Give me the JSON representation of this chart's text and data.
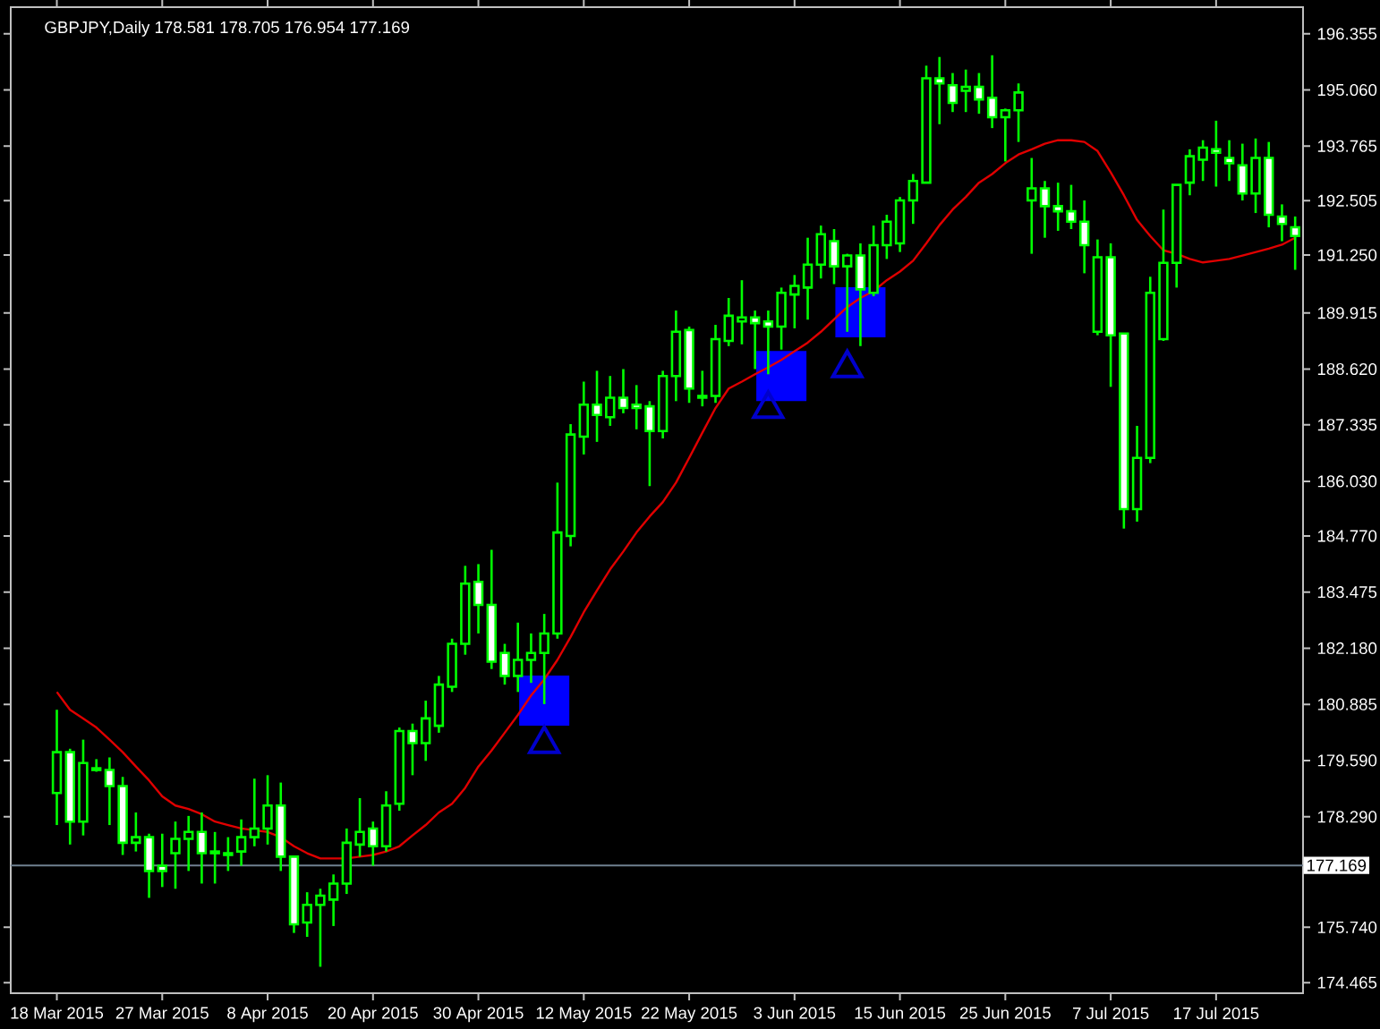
{
  "chart_data": {
    "type": "candlestick",
    "title": "GBPJPY,Daily 178.581 178.705 176.954 177.169",
    "color": "#00ff00",
    "categories": [
      "18 Mar 2015",
      null,
      null,
      null,
      null,
      null,
      null,
      null,
      "27 Mar 2015",
      null,
      null,
      null,
      null,
      null,
      null,
      null,
      "8 Apr 2015",
      null,
      null,
      null,
      null,
      null,
      null,
      null,
      "20 Apr 2015",
      null,
      null,
      null,
      null,
      null,
      null,
      null,
      "30 Apr 2015",
      null,
      null,
      null,
      null,
      null,
      null,
      null,
      "12 May 2015",
      null,
      null,
      null,
      null,
      null,
      null,
      null,
      "22 May 2015",
      null,
      null,
      null,
      null,
      null,
      null,
      null,
      "3 Jun 2015",
      null,
      null,
      null,
      null,
      null,
      null,
      null,
      "15 Jun 2015",
      null,
      null,
      null,
      null,
      null,
      null,
      null,
      "25 Jun 2015",
      null,
      null,
      null,
      null,
      null,
      null,
      null,
      "7 Jul 2015",
      null,
      null,
      null,
      null,
      null,
      null,
      null,
      "17 Jul 2015",
      null,
      null,
      null,
      null,
      null,
      null
    ],
    "ohlc": [
      [
        178.84,
        180.76,
        178.1,
        179.78
      ],
      [
        179.78,
        179.86,
        177.65,
        178.18
      ],
      [
        178.18,
        180.07,
        177.86,
        179.53
      ],
      [
        179.37,
        179.62,
        179.33,
        179.41
      ],
      [
        179.37,
        179.66,
        178.1,
        179.0
      ],
      [
        179.0,
        179.21,
        177.41,
        177.69
      ],
      [
        177.69,
        178.39,
        177.49,
        177.82
      ],
      [
        177.82,
        177.9,
        176.42,
        177.04
      ],
      [
        177.16,
        177.9,
        176.67,
        177.04
      ],
      [
        177.45,
        178.18,
        176.63,
        177.78
      ],
      [
        177.78,
        178.31,
        177.04,
        177.94
      ],
      [
        177.94,
        178.39,
        176.75,
        177.45
      ],
      [
        177.45,
        177.94,
        176.75,
        177.49
      ],
      [
        177.41,
        177.82,
        177.04,
        177.45
      ],
      [
        177.49,
        178.23,
        177.16,
        177.82
      ],
      [
        177.82,
        179.17,
        177.61,
        178.02
      ],
      [
        178.02,
        179.25,
        177.65,
        178.55
      ],
      [
        178.55,
        179.08,
        177.04,
        177.37
      ],
      [
        177.37,
        177.37,
        175.61,
        175.81
      ],
      [
        175.85,
        176.55,
        175.52,
        176.26
      ],
      [
        176.26,
        176.63,
        174.83,
        176.47
      ],
      [
        176.38,
        176.96,
        175.77,
        176.75
      ],
      [
        176.75,
        178.02,
        176.51,
        177.69
      ],
      [
        177.65,
        178.72,
        177.37,
        177.94
      ],
      [
        178.02,
        178.18,
        177.16,
        177.61
      ],
      [
        177.61,
        178.88,
        177.49,
        178.55
      ],
      [
        178.59,
        180.35,
        178.43,
        180.27
      ],
      [
        180.27,
        180.44,
        179.25,
        179.99
      ],
      [
        179.99,
        180.97,
        179.58,
        180.56
      ],
      [
        180.39,
        181.54,
        180.23,
        181.34
      ],
      [
        181.29,
        182.4,
        181.17,
        182.28
      ],
      [
        182.28,
        184.08,
        182.03,
        183.67
      ],
      [
        183.71,
        184.12,
        182.52,
        183.18
      ],
      [
        183.18,
        184.45,
        181.7,
        181.87
      ],
      [
        182.07,
        182.28,
        181.34,
        181.54
      ],
      [
        181.54,
        182.77,
        181.17,
        181.91
      ],
      [
        181.91,
        182.52,
        181.38,
        182.07
      ],
      [
        182.07,
        182.97,
        180.89,
        182.52
      ],
      [
        182.52,
        186.0,
        182.4,
        184.85
      ],
      [
        184.77,
        187.35,
        184.53,
        187.11
      ],
      [
        187.06,
        188.33,
        186.65,
        187.8
      ],
      [
        187.8,
        188.58,
        186.94,
        187.56
      ],
      [
        187.51,
        188.46,
        187.31,
        187.96
      ],
      [
        187.96,
        188.62,
        187.6,
        187.72
      ],
      [
        187.8,
        188.25,
        187.23,
        187.72
      ],
      [
        187.76,
        187.88,
        185.92,
        187.19
      ],
      [
        187.19,
        188.58,
        187.02,
        188.46
      ],
      [
        188.46,
        189.97,
        187.88,
        189.48
      ],
      [
        189.52,
        189.6,
        187.84,
        188.17
      ],
      [
        187.96,
        188.58,
        187.76,
        188.0
      ],
      [
        188.0,
        189.64,
        187.84,
        189.31
      ],
      [
        189.27,
        190.26,
        189.15,
        189.85
      ],
      [
        189.72,
        190.67,
        189.19,
        189.81
      ],
      [
        189.81,
        189.97,
        188.62,
        189.68
      ],
      [
        189.72,
        189.97,
        188.5,
        189.6
      ],
      [
        189.6,
        190.5,
        189.07,
        190.38
      ],
      [
        190.34,
        190.79,
        189.56,
        190.54
      ],
      [
        190.5,
        191.65,
        189.76,
        191.03
      ],
      [
        191.03,
        191.93,
        190.71,
        191.73
      ],
      [
        191.57,
        191.85,
        190.58,
        190.99
      ],
      [
        190.99,
        191.28,
        189.48,
        191.24
      ],
      [
        191.24,
        191.52,
        189.15,
        190.46
      ],
      [
        190.38,
        191.93,
        190.3,
        191.48
      ],
      [
        191.48,
        192.18,
        191.16,
        192.02
      ],
      [
        191.52,
        192.59,
        191.32,
        192.51
      ],
      [
        192.51,
        193.12,
        191.97,
        192.96
      ],
      [
        192.92,
        195.62,
        192.92,
        195.33
      ],
      [
        195.33,
        195.82,
        194.27,
        195.21
      ],
      [
        195.17,
        195.45,
        194.55,
        194.76
      ],
      [
        195.04,
        195.53,
        194.55,
        195.13
      ],
      [
        195.13,
        195.45,
        194.51,
        194.84
      ],
      [
        194.88,
        195.86,
        194.18,
        194.43
      ],
      [
        194.43,
        194.63,
        193.41,
        194.59
      ],
      [
        194.59,
        195.21,
        193.86,
        195.0
      ],
      [
        192.51,
        193.49,
        191.28,
        192.79
      ],
      [
        192.79,
        192.96,
        191.65,
        192.38
      ],
      [
        192.38,
        192.92,
        191.81,
        192.26
      ],
      [
        192.26,
        192.87,
        191.85,
        192.02
      ],
      [
        192.02,
        192.51,
        190.83,
        191.48
      ],
      [
        189.48,
        191.61,
        189.4,
        191.2
      ],
      [
        191.2,
        191.52,
        188.21,
        189.4
      ],
      [
        189.44,
        189.44,
        184.94,
        185.39
      ],
      [
        185.39,
        187.31,
        185.1,
        186.57
      ],
      [
        186.57,
        190.75,
        186.45,
        190.38
      ],
      [
        189.31,
        192.3,
        189.27,
        191.07
      ],
      [
        191.07,
        192.87,
        190.5,
        192.87
      ],
      [
        192.92,
        193.69,
        192.63,
        193.53
      ],
      [
        193.45,
        193.9,
        192.96,
        193.73
      ],
      [
        193.69,
        194.35,
        192.83,
        193.61
      ],
      [
        193.49,
        193.9,
        192.96,
        193.37
      ],
      [
        193.32,
        193.82,
        192.51,
        192.67
      ],
      [
        192.67,
        193.94,
        192.22,
        193.49
      ],
      [
        193.49,
        193.86,
        191.89,
        192.18
      ],
      [
        192.14,
        192.42,
        191.57,
        191.97
      ],
      [
        191.89,
        192.14,
        190.91,
        191.69
      ]
    ],
    "series": [
      {
        "type": "line",
        "color": "#e00000",
        "values": [
          181.17,
          180.76,
          180.56,
          180.35,
          180.07,
          179.78,
          179.45,
          179.13,
          178.76,
          178.55,
          178.47,
          178.35,
          178.18,
          178.1,
          178.02,
          177.98,
          177.94,
          177.82,
          177.61,
          177.45,
          177.33,
          177.33,
          177.33,
          177.37,
          177.41,
          177.49,
          177.61,
          177.86,
          178.1,
          178.39,
          178.59,
          178.96,
          179.45,
          179.82,
          180.23,
          180.64,
          181.09,
          181.46,
          181.91,
          182.44,
          183.01,
          183.51,
          184.0,
          184.41,
          184.85,
          185.22,
          185.55,
          186.0,
          186.57,
          187.15,
          187.72,
          188.17,
          188.33,
          188.5,
          188.66,
          188.83,
          189.03,
          189.23,
          189.48,
          189.77,
          190.05,
          190.26,
          190.42,
          190.67,
          190.87,
          191.12,
          191.52,
          191.94,
          192.3,
          192.59,
          192.92,
          193.12,
          193.37,
          193.57,
          193.69,
          193.82,
          193.9,
          193.9,
          193.86,
          193.65,
          193.16,
          192.63,
          192.06,
          191.69,
          191.36,
          191.28,
          191.16,
          191.08,
          191.12,
          191.16,
          191.24,
          191.32,
          191.4,
          191.49,
          191.65
        ]
      },
      {
        "type": "scatter",
        "marker": "square",
        "color": "#0000ff",
        "values": [
          null,
          null,
          null,
          null,
          null,
          null,
          null,
          null,
          null,
          null,
          null,
          null,
          null,
          null,
          null,
          null,
          null,
          null,
          null,
          null,
          null,
          null,
          null,
          null,
          null,
          null,
          null,
          null,
          null,
          null,
          null,
          null,
          null,
          null,
          null,
          null,
          null,
          180.97,
          null,
          null,
          null,
          null,
          null,
          null,
          null,
          null,
          null,
          null,
          null,
          null,
          null,
          null,
          null,
          null,
          null,
          188.46,
          null,
          null,
          null,
          null,
          null,
          189.93,
          null,
          null,
          null,
          null,
          null,
          null,
          null,
          null,
          null,
          null,
          null,
          null,
          null,
          null,
          null,
          null,
          null,
          null,
          null,
          null,
          null,
          null,
          null,
          null,
          null,
          null,
          null,
          null,
          null,
          null,
          null,
          null,
          null
        ]
      },
      {
        "type": "scatter",
        "marker": "triangle",
        "color": "#0000cc",
        "values": [
          null,
          null,
          null,
          null,
          null,
          null,
          null,
          null,
          null,
          null,
          null,
          null,
          null,
          null,
          null,
          null,
          null,
          null,
          null,
          null,
          null,
          null,
          null,
          null,
          null,
          null,
          null,
          null,
          null,
          null,
          null,
          null,
          null,
          null,
          null,
          null,
          null,
          180.07,
          null,
          null,
          null,
          null,
          null,
          null,
          null,
          null,
          null,
          null,
          null,
          null,
          null,
          null,
          null,
          null,
          187.8,
          null,
          null,
          null,
          null,
          null,
          188.74,
          null,
          null,
          null,
          null,
          null,
          null,
          null,
          null,
          null,
          null,
          null,
          null,
          null,
          null,
          null,
          null,
          null,
          null,
          null,
          null,
          null,
          null,
          null,
          null,
          null,
          null,
          null,
          null,
          null,
          null,
          null,
          null,
          null,
          null
        ]
      }
    ],
    "ref_lines": [
      {
        "axis": "y",
        "value": 177.169,
        "label": "177.169",
        "color": "#708090"
      }
    ],
    "ylim": [
      174.22,
      196.97
    ],
    "yticks": [
      196.355,
      {
        "value": 195.06,
        "label": "195.060"
      },
      193.765,
      192.505,
      {
        "value": 191.25,
        "label": "191.250"
      },
      189.915,
      {
        "value": 188.62,
        "label": "188.620"
      },
      187.335,
      {
        "value": 186.03,
        "label": "186.030"
      },
      {
        "value": 184.77,
        "label": "184.770"
      },
      183.475,
      {
        "value": 182.18,
        "label": "182.180"
      },
      180.885,
      {
        "value": 179.59,
        "label": "179.590"
      },
      {
        "value": 178.29,
        "label": "178.290"
      },
      {
        "value": 175.74,
        "label": "175.740"
      },
      174.465
    ]
  }
}
